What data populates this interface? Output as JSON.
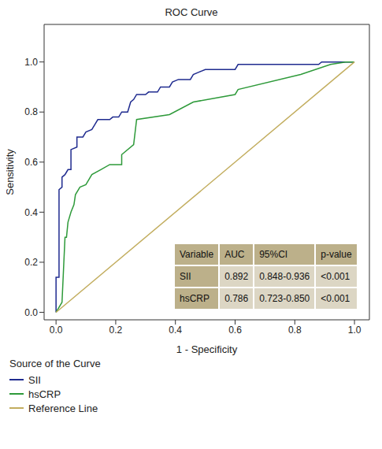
{
  "chart_data": {
    "type": "line",
    "title": "ROC Curve",
    "x_label": "1 - Specificity",
    "y_label": "Sensitivity",
    "legend": "bottom",
    "legend_title": "Source of the Curve",
    "xlim": [
      -0.04,
      1.05
    ],
    "ylim": [
      -0.03,
      1.15
    ],
    "xticks": [
      {
        "value": 0,
        "label": "0.0"
      },
      0.2,
      0.4,
      0.6,
      0.8,
      {
        "value": 1,
        "label": "1.0"
      }
    ],
    "yticks": [
      {
        "value": 0,
        "label": "0.0"
      },
      0.2,
      0.4,
      0.6,
      0.8,
      {
        "value": 1,
        "label": "1.0"
      }
    ],
    "series": [
      {
        "name": "SII",
        "color": "#1f2b8f",
        "x": [
          0,
          0,
          0.01,
          0.01,
          0.02,
          0.02,
          0.03,
          0.035,
          0.04,
          0.05,
          0.05,
          0.07,
          0.07,
          0.09,
          0.1,
          0.12,
          0.13,
          0.14,
          0.18,
          0.19,
          0.21,
          0.22,
          0.24,
          0.25,
          0.26,
          0.27,
          0.3,
          0.31,
          0.34,
          0.35,
          0.38,
          0.39,
          0.41,
          0.45,
          0.46,
          0.48,
          0.5,
          0.6,
          0.61,
          0.88,
          0.89,
          1
        ],
        "values": [
          0,
          0.14,
          0.14,
          0.49,
          0.5,
          0.54,
          0.55,
          0.56,
          0.57,
          0.57,
          0.65,
          0.66,
          0.7,
          0.7,
          0.72,
          0.73,
          0.75,
          0.77,
          0.77,
          0.78,
          0.78,
          0.8,
          0.8,
          0.84,
          0.85,
          0.87,
          0.87,
          0.88,
          0.88,
          0.9,
          0.9,
          0.92,
          0.93,
          0.93,
          0.95,
          0.96,
          0.97,
          0.97,
          0.99,
          0.99,
          1,
          1
        ]
      },
      {
        "name": "hsCRP",
        "color": "#2e9a3a",
        "x": [
          0,
          0.01,
          0.02,
          0.025,
          0.03,
          0.035,
          0.04,
          0.05,
          0.06,
          0.065,
          0.08,
          0.1,
          0.12,
          0.15,
          0.18,
          0.22,
          0.22,
          0.26,
          0.27,
          0.38,
          0.46,
          0.6,
          0.61,
          0.82,
          0.92,
          0.97,
          1
        ],
        "values": [
          0,
          0.02,
          0.04,
          0.17,
          0.3,
          0.3,
          0.36,
          0.4,
          0.43,
          0.47,
          0.5,
          0.51,
          0.55,
          0.57,
          0.59,
          0.59,
          0.63,
          0.67,
          0.77,
          0.79,
          0.84,
          0.87,
          0.89,
          0.95,
          0.99,
          1,
          1
        ]
      },
      {
        "name": "Reference Line",
        "color": "#c2ad5e",
        "x": [
          0,
          1
        ],
        "values": [
          0,
          1
        ]
      }
    ],
    "table": {
      "columns": [
        "Variable",
        "AUC",
        "95%CI",
        "p-value"
      ],
      "rows": [
        [
          "SII",
          "0.892",
          "0.848-0.936",
          "<0.001"
        ],
        [
          "hsCRP",
          "0.786",
          "0.723-0.850",
          "<0.001"
        ]
      ]
    }
  }
}
